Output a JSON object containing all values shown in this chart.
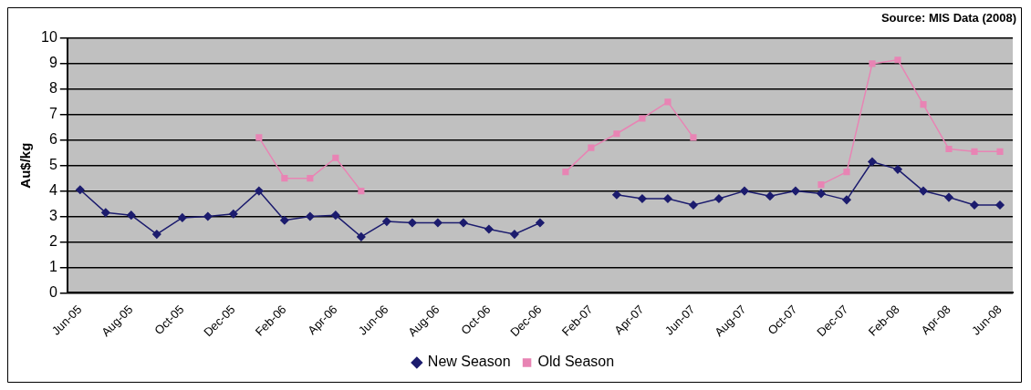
{
  "chart_data": {
    "type": "line",
    "ylabel": "Au$/kg",
    "annotations": [
      "Source: MIS Data (2008)"
    ],
    "categories": [
      "Jun-05",
      null,
      "Aug-05",
      null,
      "Oct-05",
      null,
      "Dec-05",
      null,
      "Feb-06",
      null,
      "Apr-06",
      null,
      "Jun-06",
      null,
      "Aug-06",
      null,
      "Oct-06",
      null,
      "Dec-06",
      null,
      "Feb-07",
      null,
      "Apr-07",
      null,
      "Jun-07",
      null,
      "Aug-07",
      null,
      "Oct-07",
      null,
      "Dec-07",
      null,
      "Feb-08",
      null,
      "Apr-08",
      null,
      "Jun-08"
    ],
    "series": [
      {
        "name": "New Season",
        "color": "#1c1c6e",
        "marker": "diamond",
        "values": [
          4.05,
          3.15,
          3.05,
          2.3,
          2.95,
          3.0,
          3.1,
          4.0,
          2.85,
          3.0,
          3.05,
          2.2,
          2.8,
          2.75,
          2.75,
          2.75,
          2.5,
          2.3,
          2.75,
          null,
          null,
          3.85,
          3.7,
          3.7,
          3.45,
          3.7,
          4.0,
          3.8,
          4.0,
          3.9,
          3.65,
          5.15,
          4.85,
          4.0,
          3.75,
          3.45,
          3.45
        ]
      },
      {
        "name": "Old Season",
        "color": "#e884b4",
        "marker": "square",
        "values": [
          null,
          null,
          null,
          null,
          null,
          null,
          null,
          6.1,
          4.5,
          4.5,
          5.3,
          4.0,
          null,
          null,
          null,
          null,
          null,
          null,
          null,
          4.75,
          5.7,
          6.25,
          6.85,
          7.5,
          6.1,
          null,
          null,
          null,
          null,
          4.25,
          4.75,
          9.0,
          9.15,
          7.4,
          5.65,
          5.55,
          5.55
        ]
      }
    ],
    "ylim": [
      0,
      10
    ],
    "yticks": [
      0,
      1,
      2,
      3,
      4,
      5,
      6,
      7,
      8,
      9,
      10
    ],
    "grid": "y",
    "legend": "bottom",
    "line_style": "solid"
  }
}
